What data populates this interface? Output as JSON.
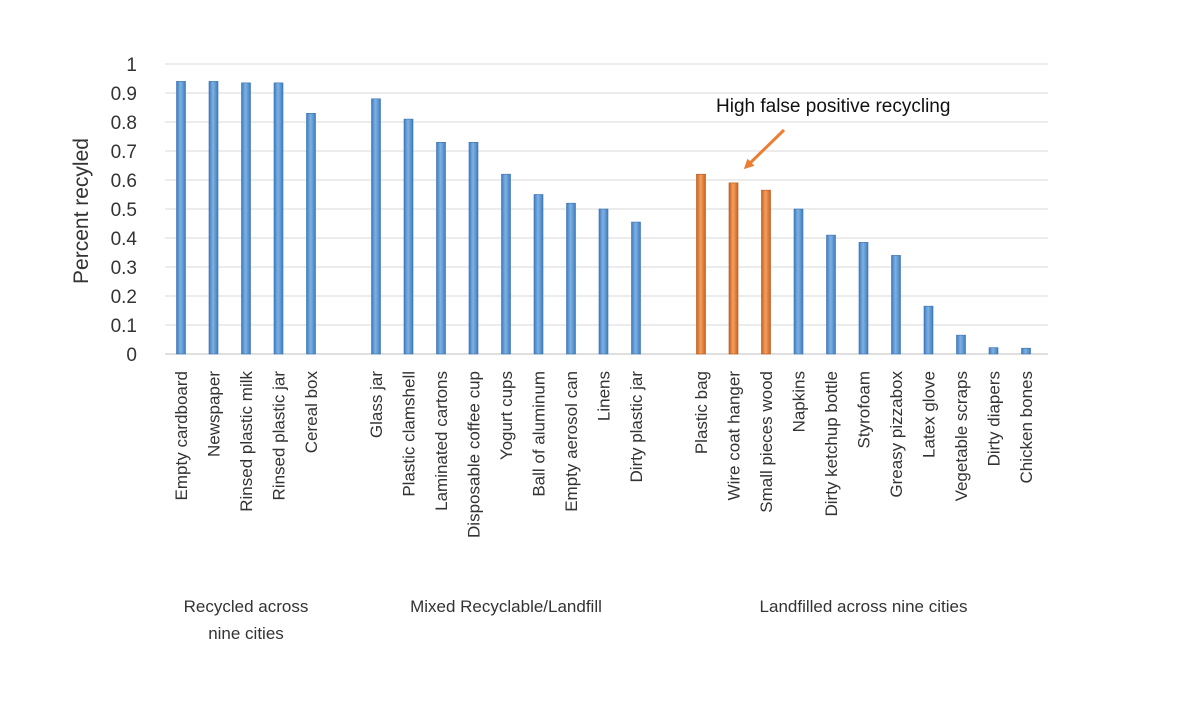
{
  "chart_data": {
    "type": "bar",
    "ylabel": "Percent recyled",
    "ylim": [
      0,
      1
    ],
    "yticks": [
      0,
      0.1,
      0.2,
      0.3,
      0.4,
      0.5,
      0.6,
      0.7,
      0.8,
      0.9,
      1
    ],
    "ytick_labels": [
      "0",
      "0.1",
      "0.2",
      "0.3",
      "0.4",
      "0.5",
      "0.6",
      "0.7",
      "0.8",
      "0.9",
      "1"
    ],
    "grid": true,
    "colors": {
      "default": "#5b9bd5",
      "highlight": "#ed7d31",
      "grid": "#d9d9d9"
    },
    "groups": [
      {
        "label_lines": [
          "Recycled across",
          "nine cities"
        ],
        "bars": [
          {
            "category": "Empty cardboard",
            "value": 0.94,
            "highlight": false
          },
          {
            "category": "Newspaper",
            "value": 0.94,
            "highlight": false
          },
          {
            "category": "Rinsed plastic milk",
            "value": 0.935,
            "highlight": false
          },
          {
            "category": "Rinsed plastic jar",
            "value": 0.935,
            "highlight": false
          },
          {
            "category": "Cereal box",
            "value": 0.83,
            "highlight": false
          }
        ]
      },
      {
        "label_lines": [
          "Mixed Recyclable/Landfill"
        ],
        "bars": [
          {
            "category": "Glass jar",
            "value": 0.88,
            "highlight": false
          },
          {
            "category": "Plastic clamshell",
            "value": 0.81,
            "highlight": false
          },
          {
            "category": "Laminated cartons",
            "value": 0.73,
            "highlight": false
          },
          {
            "category": "Disposable coffee cup",
            "value": 0.73,
            "highlight": false
          },
          {
            "category": "Yogurt cups",
            "value": 0.62,
            "highlight": false
          },
          {
            "category": "Ball of aluminum",
            "value": 0.55,
            "highlight": false
          },
          {
            "category": "Empty aerosol can",
            "value": 0.52,
            "highlight": false
          },
          {
            "category": "Linens",
            "value": 0.5,
            "highlight": false
          },
          {
            "category": "Dirty plastic jar",
            "value": 0.455,
            "highlight": false
          }
        ]
      },
      {
        "label_lines": [
          "Landfilled across nine cities"
        ],
        "bars": [
          {
            "category": "Plastic bag",
            "value": 0.62,
            "highlight": true
          },
          {
            "category": "Wire coat hanger",
            "value": 0.59,
            "highlight": true
          },
          {
            "category": "Small pieces wood",
            "value": 0.565,
            "highlight": true
          },
          {
            "category": "Napkins",
            "value": 0.5,
            "highlight": false
          },
          {
            "category": "Dirty ketchup bottle",
            "value": 0.41,
            "highlight": false
          },
          {
            "category": "Styrofoam",
            "value": 0.385,
            "highlight": false
          },
          {
            "category": "Greasy pizzabox",
            "value": 0.34,
            "highlight": false
          },
          {
            "category": "Latex glove",
            "value": 0.165,
            "highlight": false
          },
          {
            "category": "Vegetable scraps",
            "value": 0.065,
            "highlight": false
          },
          {
            "category": "Dirty diapers",
            "value": 0.022,
            "highlight": false
          },
          {
            "category": "Chicken bones",
            "value": 0.02,
            "highlight": false
          }
        ]
      }
    ],
    "annotation": {
      "text": "High false positive recycling",
      "target_category": "Wire coat hanger",
      "color": "#ed7d31"
    }
  }
}
